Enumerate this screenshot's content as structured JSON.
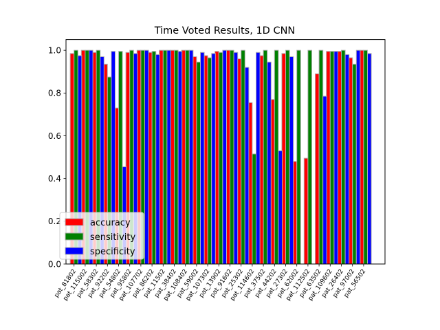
{
  "chart_data": {
    "type": "bar",
    "title": "Time Voted Results, 1D CNN",
    "xlabel": "",
    "ylabel": "",
    "ylim": [
      0,
      1.05
    ],
    "yticks": [
      "0.0",
      "0.2",
      "0.4",
      "0.6",
      "0.8",
      "1.0"
    ],
    "categories": [
      "pat_81802",
      "pat_115002",
      "pat_58302",
      "pat_92202",
      "pat_54802",
      "pat_95802",
      "pat_107702",
      "pat_86202",
      "pat_11502",
      "pat_38402",
      "pat_108402",
      "pat_59002",
      "pat_107302",
      "pat_13902",
      "pat_91602",
      "pat_25302",
      "pat_114602",
      "pat_37502",
      "pat_44202",
      "pat_27302",
      "pat_62002",
      "pat_112502",
      "pat_63502",
      "pat_109602",
      "pat_26402",
      "pat_97002",
      "pat_56502"
    ],
    "series": [
      {
        "name": "accuracy",
        "color": "#ff0000",
        "values": [
          0.985,
          1.0,
          0.99,
          0.935,
          0.73,
          0.99,
          1.0,
          0.99,
          1.0,
          1.0,
          1.0,
          0.97,
          0.975,
          0.995,
          1.0,
          0.96,
          0.755,
          0.975,
          0.77,
          0.985,
          0.48,
          0.495,
          0.89,
          0.995,
          0.995,
          0.965,
          1.0
        ]
      },
      {
        "name": "sensitivity",
        "color": "#008000",
        "values": [
          1.0,
          1.0,
          1.0,
          0.875,
          0.995,
          1.0,
          1.0,
          0.995,
          1.0,
          1.0,
          1.0,
          0.945,
          0.965,
          0.99,
          1.0,
          1.0,
          0.515,
          1.0,
          1.0,
          1.0,
          1.0,
          1.0,
          1.0,
          0.995,
          1.0,
          0.935,
          1.0
        ]
      },
      {
        "name": "specificity",
        "color": "#0000ff",
        "values": [
          0.975,
          1.0,
          0.97,
          0.995,
          0.455,
          0.985,
          1.0,
          0.98,
          1.0,
          0.995,
          1.0,
          0.99,
          0.985,
          1.0,
          0.99,
          0.92,
          0.99,
          0.945,
          0.53,
          0.97,
          0.0,
          0.0,
          0.785,
          0.995,
          0.98,
          1.0,
          0.985
        ]
      }
    ],
    "legend": {
      "placement": "lower-left",
      "entries": [
        "accuracy",
        "sensitivity",
        "specificity"
      ]
    },
    "grid": false
  }
}
